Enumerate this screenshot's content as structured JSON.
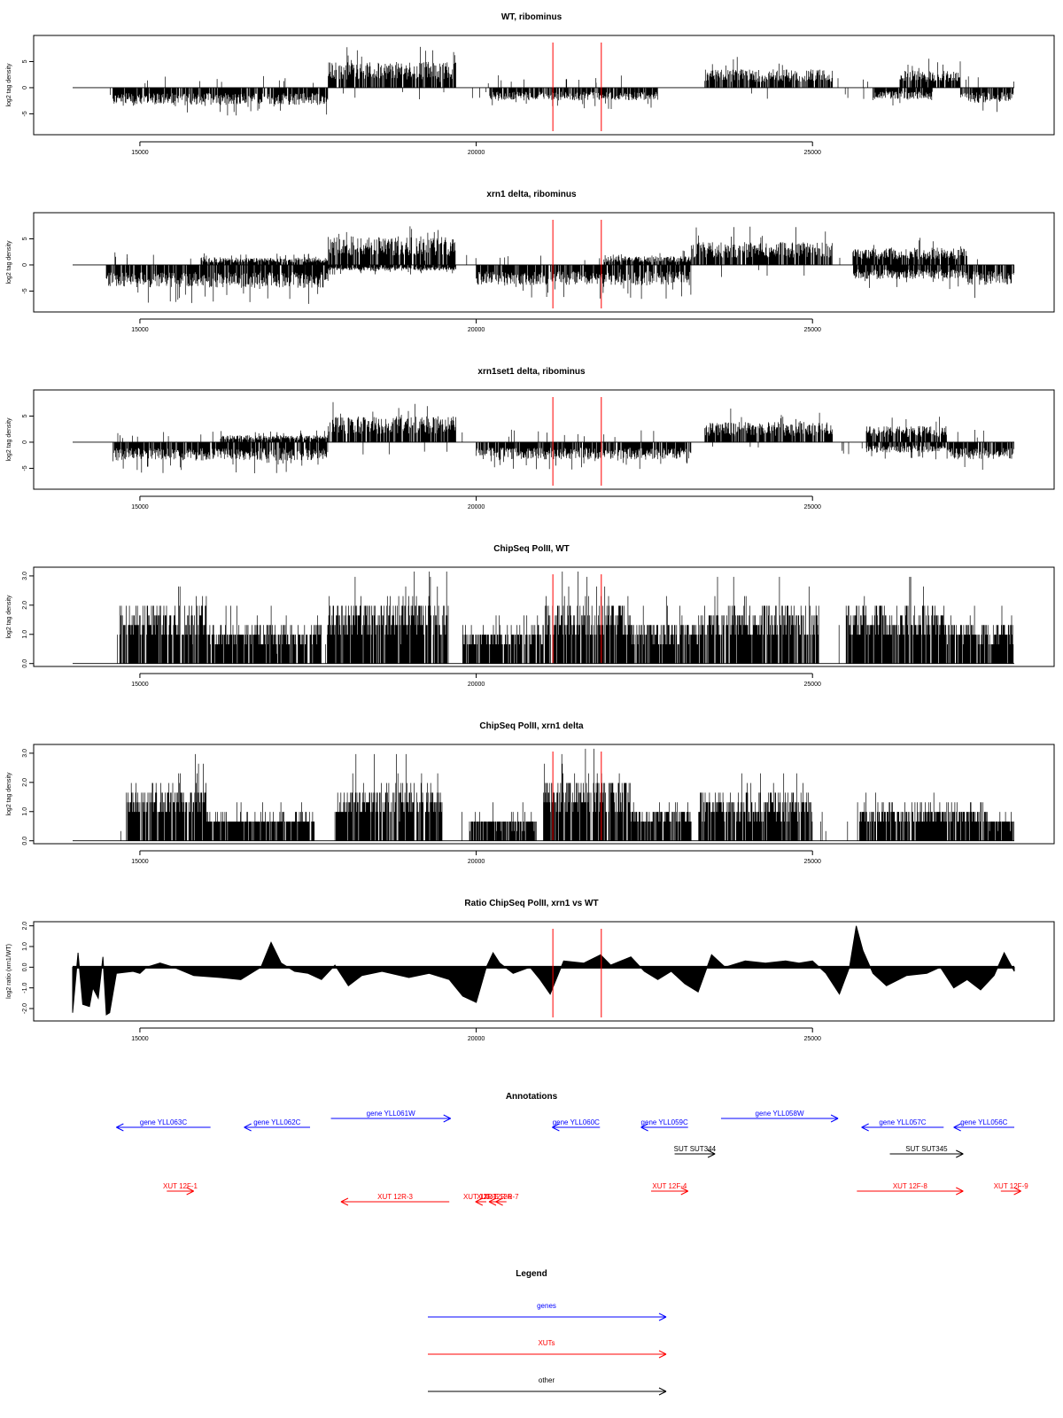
{
  "chart_data": [
    {
      "type": "bar",
      "title": "WT, ribominus",
      "ylabel": "log2 tag density",
      "xlim": [
        14000,
        28000
      ],
      "ylim": [
        -9,
        10
      ],
      "xticks": [
        15000,
        20000,
        25000
      ],
      "yticks": [
        -5,
        0,
        5
      ],
      "markers_x": [
        21140,
        21860
      ],
      "segments": [
        {
          "x0": 14600,
          "x1": 17800,
          "s": -1,
          "a": 3.0
        },
        {
          "x0": 17800,
          "x1": 19700,
          "s": 1,
          "a": 4.5
        },
        {
          "x0": 20200,
          "x1": 22700,
          "s": -1,
          "a": 2.2
        },
        {
          "x0": 23400,
          "x1": 25300,
          "s": 1,
          "a": 3.2
        },
        {
          "x0": 25900,
          "x1": 26800,
          "s": -1,
          "a": 2.0
        },
        {
          "x0": 26300,
          "x1": 27200,
          "s": 1,
          "a": 3.0
        },
        {
          "x0": 27200,
          "x1": 28000,
          "s": -1,
          "a": 2.6
        }
      ]
    },
    {
      "type": "bar",
      "title": "xrn1 delta, ribominus",
      "ylabel": "log2 tag density",
      "xlim": [
        14000,
        28000
      ],
      "ylim": [
        -9,
        10
      ],
      "xticks": [
        15000,
        20000,
        25000
      ],
      "yticks": [
        -5,
        0,
        5
      ],
      "markers_x": [
        21140,
        21860
      ],
      "segments": [
        {
          "x0": 14500,
          "x1": 17800,
          "s": -1,
          "a": 4.0
        },
        {
          "x0": 15900,
          "x1": 17800,
          "s": 1,
          "a": 1.2
        },
        {
          "x0": 17800,
          "x1": 19700,
          "s": 1,
          "a": 5.0
        },
        {
          "x0": 17800,
          "x1": 19700,
          "s": -1,
          "a": 1.0
        },
        {
          "x0": 20000,
          "x1": 23200,
          "s": -1,
          "a": 3.5
        },
        {
          "x0": 21900,
          "x1": 23200,
          "s": 1,
          "a": 1.5
        },
        {
          "x0": 23200,
          "x1": 25300,
          "s": 1,
          "a": 4.0
        },
        {
          "x0": 25600,
          "x1": 27300,
          "s": 1,
          "a": 3.0
        },
        {
          "x0": 25600,
          "x1": 27300,
          "s": -1,
          "a": 2.5
        },
        {
          "x0": 27300,
          "x1": 28000,
          "s": -1,
          "a": 3.5
        }
      ]
    },
    {
      "type": "bar",
      "title": "xrn1set1 delta, ribominus",
      "ylabel": "log2 tag density",
      "xlim": [
        14000,
        28000
      ],
      "ylim": [
        -9,
        10
      ],
      "xticks": [
        15000,
        20000,
        25000
      ],
      "yticks": [
        -5,
        0,
        5
      ],
      "markers_x": [
        21140,
        21860
      ],
      "segments": [
        {
          "x0": 14600,
          "x1": 17800,
          "s": -1,
          "a": 3.2
        },
        {
          "x0": 16200,
          "x1": 17800,
          "s": 1,
          "a": 1.2
        },
        {
          "x0": 17800,
          "x1": 19700,
          "s": 1,
          "a": 4.5
        },
        {
          "x0": 20000,
          "x1": 23200,
          "s": -1,
          "a": 3.0
        },
        {
          "x0": 23400,
          "x1": 25300,
          "s": 1,
          "a": 3.5
        },
        {
          "x0": 25800,
          "x1": 27000,
          "s": 1,
          "a": 2.8
        },
        {
          "x0": 25800,
          "x1": 27000,
          "s": -1,
          "a": 1.8
        },
        {
          "x0": 27000,
          "x1": 28000,
          "s": -1,
          "a": 3.0
        }
      ]
    },
    {
      "type": "bar",
      "title": "ChipSeq PolII, WT",
      "ylabel": "log2 tag density",
      "xlim": [
        14000,
        28000
      ],
      "ylim": [
        -0.1,
        3.3
      ],
      "xticks": [
        15000,
        20000,
        25000
      ],
      "yticks": [
        0.0,
        1.0,
        2.0,
        3.0
      ],
      "markers_x": [
        21140,
        21860
      ],
      "segments": [
        {
          "x0": 14700,
          "x1": 16000,
          "s": 1,
          "a": 1.6
        },
        {
          "x0": 16000,
          "x1": 17700,
          "s": 1,
          "a": 0.9
        },
        {
          "x0": 17800,
          "x1": 19600,
          "s": 1,
          "a": 1.7
        },
        {
          "x0": 19800,
          "x1": 21000,
          "s": 1,
          "a": 0.8
        },
        {
          "x0": 21000,
          "x1": 22300,
          "s": 1,
          "a": 1.7
        },
        {
          "x0": 22300,
          "x1": 23300,
          "s": 1,
          "a": 1.0
        },
        {
          "x0": 23300,
          "x1": 25100,
          "s": 1,
          "a": 1.5
        },
        {
          "x0": 25500,
          "x1": 27000,
          "s": 1,
          "a": 1.6
        },
        {
          "x0": 27000,
          "x1": 28000,
          "s": 1,
          "a": 1.0
        }
      ]
    },
    {
      "type": "bar",
      "title": "ChipSeq PolII, xrn1 delta",
      "ylabel": "log2 tag density",
      "xlim": [
        14000,
        28000
      ],
      "ylim": [
        -0.1,
        3.3
      ],
      "xticks": [
        15000,
        20000,
        25000
      ],
      "yticks": [
        0.0,
        1.0,
        2.0,
        3.0
      ],
      "markers_x": [
        21140,
        21860
      ],
      "segments": [
        {
          "x0": 14800,
          "x1": 16000,
          "s": 1,
          "a": 1.5
        },
        {
          "x0": 16000,
          "x1": 17600,
          "s": 1,
          "a": 0.5
        },
        {
          "x0": 17900,
          "x1": 19500,
          "s": 1,
          "a": 1.4
        },
        {
          "x0": 19900,
          "x1": 20900,
          "s": 1,
          "a": 0.4
        },
        {
          "x0": 21000,
          "x1": 22300,
          "s": 1,
          "a": 1.7
        },
        {
          "x0": 22300,
          "x1": 23200,
          "s": 1,
          "a": 0.7
        },
        {
          "x0": 23300,
          "x1": 25000,
          "s": 1,
          "a": 1.2
        },
        {
          "x0": 25700,
          "x1": 27600,
          "s": 1,
          "a": 0.8
        },
        {
          "x0": 27600,
          "x1": 28000,
          "s": 1,
          "a": 0.4
        }
      ]
    },
    {
      "type": "area",
      "title": "Ratio ChipSeq PolII, xrn1 vs WT",
      "ylabel": "log2 ratio (xrn1/WT)",
      "xlim": [
        14000,
        28000
      ],
      "ylim": [
        -2.6,
        2.2
      ],
      "xticks": [
        15000,
        20000,
        25000
      ],
      "yticks": [
        -2,
        -1,
        0,
        1,
        2
      ],
      "markers_x": [
        21140,
        21860
      ],
      "profile": [
        [
          14000,
          -2.2
        ],
        [
          14080,
          0.7
        ],
        [
          14150,
          -1.8
        ],
        [
          14250,
          -1.9
        ],
        [
          14300,
          -1.0
        ],
        [
          14380,
          -1.5
        ],
        [
          14450,
          0.5
        ],
        [
          14500,
          -2.3
        ],
        [
          14550,
          -2.2
        ],
        [
          14650,
          -0.3
        ],
        [
          14900,
          -0.2
        ],
        [
          15000,
          -0.3
        ],
        [
          15100,
          0.0
        ],
        [
          15300,
          0.2
        ],
        [
          15500,
          0.0
        ],
        [
          15800,
          -0.4
        ],
        [
          16200,
          -0.5
        ],
        [
          16500,
          -0.6
        ],
        [
          16800,
          0.0
        ],
        [
          16950,
          1.2
        ],
        [
          17100,
          0.2
        ],
        [
          17300,
          -0.2
        ],
        [
          17500,
          -0.3
        ],
        [
          17700,
          -0.6
        ],
        [
          17900,
          0.1
        ],
        [
          18100,
          -0.9
        ],
        [
          18300,
          -0.4
        ],
        [
          18600,
          -0.2
        ],
        [
          19000,
          -0.5
        ],
        [
          19300,
          -0.3
        ],
        [
          19600,
          -0.6
        ],
        [
          19800,
          -1.4
        ],
        [
          20000,
          -1.7
        ],
        [
          20150,
          0.0
        ],
        [
          20250,
          0.7
        ],
        [
          20350,
          0.2
        ],
        [
          20550,
          -0.3
        ],
        [
          20800,
          0.0
        ],
        [
          20950,
          -0.6
        ],
        [
          21100,
          -1.3
        ],
        [
          21300,
          0.3
        ],
        [
          21600,
          0.2
        ],
        [
          21850,
          0.6
        ],
        [
          22000,
          0.1
        ],
        [
          22300,
          0.5
        ],
        [
          22500,
          -0.2
        ],
        [
          22700,
          -0.6
        ],
        [
          22900,
          -0.2
        ],
        [
          23100,
          -0.8
        ],
        [
          23300,
          -1.2
        ],
        [
          23500,
          0.6
        ],
        [
          23700,
          0.0
        ],
        [
          24000,
          0.3
        ],
        [
          24300,
          0.2
        ],
        [
          24600,
          0.3
        ],
        [
          24800,
          0.2
        ],
        [
          25000,
          0.3
        ],
        [
          25200,
          -0.3
        ],
        [
          25400,
          -1.3
        ],
        [
          25550,
          0.0
        ],
        [
          25650,
          2.0
        ],
        [
          25750,
          0.8
        ],
        [
          25900,
          -0.3
        ],
        [
          26100,
          -0.9
        ],
        [
          26400,
          -0.4
        ],
        [
          26700,
          -0.3
        ],
        [
          26900,
          0.0
        ],
        [
          27100,
          -1.0
        ],
        [
          27300,
          -0.6
        ],
        [
          27500,
          -1.1
        ],
        [
          27700,
          -0.4
        ],
        [
          27850,
          0.7
        ],
        [
          28000,
          -0.2
        ]
      ]
    }
  ],
  "annotations": {
    "title": "Annotations",
    "colors": {
      "genes": "#0000ff",
      "xuts": "#ff0000",
      "other": "#000000"
    },
    "features": [
      {
        "label": "gene YLL063C",
        "x0": 16050,
        "x1": 14650,
        "row": 1,
        "kind": "genes"
      },
      {
        "label": "gene YLL062C",
        "x0": 17530,
        "x1": 16550,
        "row": 1,
        "kind": "genes"
      },
      {
        "label": "gene YLL061W",
        "x0": 17840,
        "x1": 19620,
        "row": 0,
        "kind": "genes"
      },
      {
        "label": "gene YLL060C",
        "x0": 21840,
        "x1": 21130,
        "row": 1,
        "kind": "genes"
      },
      {
        "label": "gene YLL059C",
        "x0": 23150,
        "x1": 22450,
        "row": 1,
        "kind": "genes"
      },
      {
        "label": "gene YLL058W",
        "x0": 23640,
        "x1": 25380,
        "row": 0,
        "kind": "genes"
      },
      {
        "label": "gene YLL057C",
        "x0": 26950,
        "x1": 25730,
        "row": 1,
        "kind": "genes"
      },
      {
        "label": "gene YLL056C",
        "x0": 28000,
        "x1": 27100,
        "row": 1,
        "kind": "genes"
      },
      {
        "label": "SUT SUT344",
        "x0": 22950,
        "x1": 23550,
        "row": 2,
        "kind": "other"
      },
      {
        "label": "SUT SUT345",
        "x0": 26150,
        "x1": 27240,
        "row": 2,
        "kind": "other"
      },
      {
        "label": "XUT 12F-1",
        "x0": 15400,
        "x1": 15800,
        "row": 3,
        "kind": "xuts"
      },
      {
        "label": "XUT 12R-3",
        "x0": 19600,
        "x1": 17990,
        "row": 4,
        "kind": "xuts"
      },
      {
        "label": "XUT 12R-5",
        "x0": 20150,
        "x1": 19990,
        "row": 4,
        "kind": "xuts"
      },
      {
        "label": "XUT 12R-6",
        "x0": 20350,
        "x1": 20190,
        "row": 4,
        "kind": "xuts"
      },
      {
        "label": "XUT 12R-7",
        "x0": 20450,
        "x1": 20290,
        "row": 4,
        "kind": "xuts"
      },
      {
        "label": "XUT 12F-4",
        "x0": 22600,
        "x1": 23150,
        "row": 3,
        "kind": "xuts"
      },
      {
        "label": "XUT 12F-8",
        "x0": 25660,
        "x1": 27240,
        "row": 3,
        "kind": "xuts"
      },
      {
        "label": "XUT 12F-9",
        "x0": 27800,
        "x1": 28100,
        "row": 3,
        "kind": "xuts"
      }
    ]
  },
  "legend": {
    "title": "Legend",
    "items": [
      {
        "label": "genes",
        "kind": "genes"
      },
      {
        "label": "XUTs",
        "kind": "xuts"
      },
      {
        "label": "other",
        "kind": "other"
      }
    ]
  }
}
